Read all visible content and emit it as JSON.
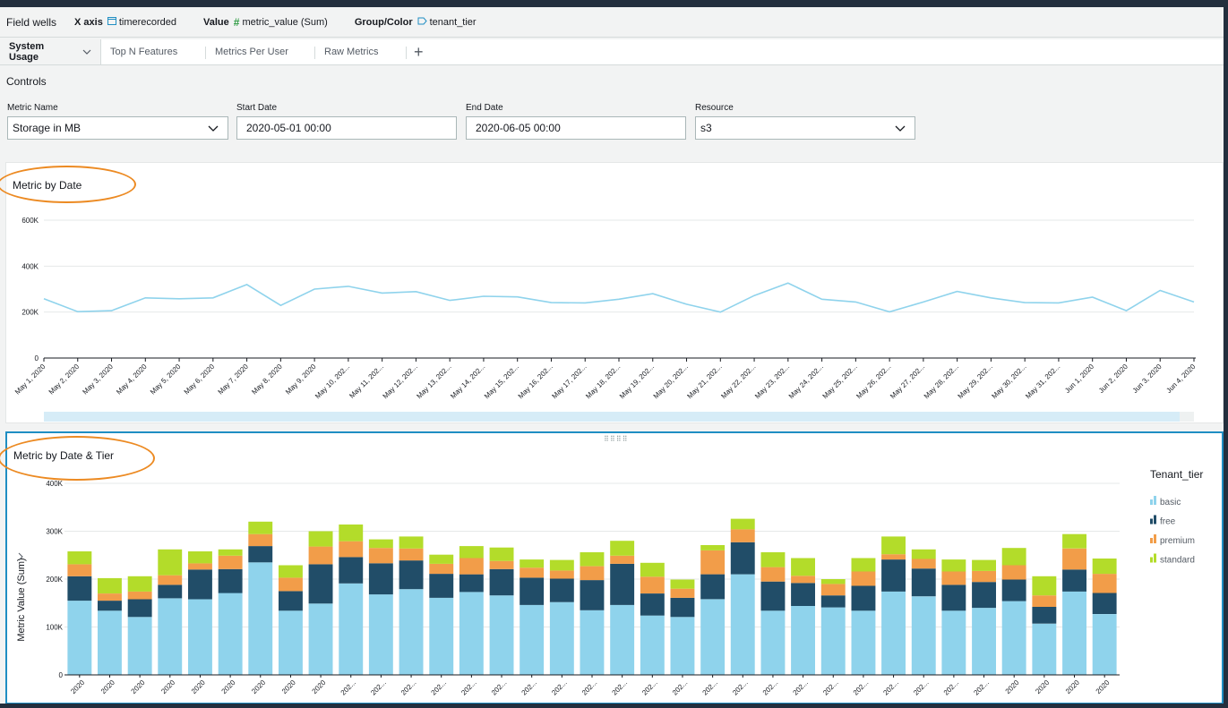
{
  "field_wells": {
    "title": "Field wells",
    "x_axis_label": "X axis",
    "x_axis_value": "timerecorded",
    "value_label": "Value",
    "value_value": "metric_value (Sum)",
    "group_label": "Group/Color",
    "group_value": "tenant_tier"
  },
  "tabs": [
    {
      "label": "System Usage",
      "active": true
    },
    {
      "label": "Top N Features"
    },
    {
      "label": "Metrics Per User"
    },
    {
      "label": "Raw Metrics"
    }
  ],
  "add_tab_symbol": "+",
  "controls": {
    "title": "Controls",
    "metric_name": {
      "label": "Metric Name",
      "value": "Storage in MB"
    },
    "start_date": {
      "label": "Start Date",
      "value": "2020-05-01 00:00"
    },
    "end_date": {
      "label": "End Date",
      "value": "2020-06-05 00:00"
    },
    "resource": {
      "label": "Resource",
      "value": "s3"
    }
  },
  "visual1": {
    "title": "Metric by Date"
  },
  "visual2": {
    "title": "Metric by Date & Tier"
  },
  "colors": {
    "line": "#8fd3ec",
    "basic": "#8fd3ec",
    "free": "#214d68",
    "premium": "#f29d49",
    "standard": "#b3dc2a",
    "highlight": "#ec8a22",
    "selected_border": "#1f8ec3"
  },
  "icons": {
    "x_axis": "calendar-icon",
    "value": "hash-icon",
    "group": "tag-icon"
  },
  "chart_data": [
    {
      "type": "line",
      "title": "Metric by Date",
      "ylim": [
        0,
        600000
      ],
      "yticks": [
        "0",
        "200K",
        "400K",
        "600K"
      ],
      "categories": [
        "May 1, 2020",
        "May 2, 2020",
        "May 3, 2020",
        "May 4, 2020",
        "May 5, 2020",
        "May 6, 2020",
        "May 7, 2020",
        "May 8, 2020",
        "May 9, 2020",
        "May 10, 202...",
        "May 11, 202...",
        "May 12, 202...",
        "May 13, 202...",
        "May 14, 202...",
        "May 15, 202...",
        "May 16, 202...",
        "May 17, 202...",
        "May 18, 202...",
        "May 19, 202...",
        "May 20, 202...",
        "May 21, 202...",
        "May 22, 202...",
        "May 23, 202...",
        "May 24, 202...",
        "May 25, 202...",
        "May 26, 202...",
        "May 27, 202...",
        "May 28, 202...",
        "May 29, 202...",
        "May 30, 202...",
        "May 31, 202...",
        "Jun 1, 2020",
        "Jun 2, 2020",
        "Jun 3, 2020",
        "Jun 4, 2020"
      ],
      "values": [
        258000,
        202000,
        206000,
        262000,
        258000,
        262000,
        320000,
        229000,
        300000,
        312000,
        283000,
        289000,
        251000,
        269000,
        266000,
        241000,
        240000,
        256000,
        280000,
        234000,
        200000,
        272000,
        326000,
        256000,
        244000,
        201000,
        244000,
        290000,
        262000,
        241000,
        240000,
        265000,
        206000,
        294000,
        244000
      ],
      "grid": true
    },
    {
      "type": "bar",
      "stacked": true,
      "title": "Metric by Date & Tier",
      "ylabel": "Metric Value (Sum)",
      "ylim": [
        0,
        400000
      ],
      "yticks": [
        "0",
        "100K",
        "200K",
        "300K",
        "400K"
      ],
      "xtick_labels": [
        "2020",
        "2020",
        "2020",
        "2020",
        "2020",
        "2020",
        "2020",
        "2020",
        "2020",
        "202...",
        "202...",
        "202...",
        "202...",
        "202...",
        "202...",
        "202...",
        "202...",
        "202...",
        "202...",
        "202...",
        "202...",
        "202...",
        "202...",
        "202...",
        "202...",
        "202...",
        "202...",
        "202...",
        "202...",
        "202...",
        "202...",
        "2020",
        "2020",
        "2020",
        "2020"
      ],
      "legend_title": "Tenant_tier",
      "legend_position": "right",
      "series": [
        {
          "name": "basic",
          "values": [
            155000,
            134000,
            121000,
            160000,
            158000,
            171000,
            235000,
            134000,
            149000,
            191000,
            168000,
            179000,
            161000,
            173000,
            166000,
            146000,
            152000,
            135000,
            146000,
            124000,
            121000,
            158000,
            210000,
            134000,
            144000,
            141000,
            134000,
            174000,
            164000,
            134000,
            140000,
            154000,
            107000,
            174000,
            127000
          ]
        },
        {
          "name": "free",
          "values": [
            51000,
            21000,
            37000,
            28000,
            62000,
            50000,
            34000,
            41000,
            82000,
            55000,
            65000,
            60000,
            50000,
            37000,
            55000,
            57000,
            49000,
            63000,
            86000,
            46000,
            40000,
            52000,
            67000,
            61000,
            48000,
            25000,
            52000,
            67000,
            58000,
            54000,
            54000,
            45000,
            35000,
            46000,
            44000
          ]
        },
        {
          "name": "premium",
          "values": [
            25000,
            15000,
            16000,
            20000,
            13000,
            28000,
            25000,
            28000,
            37000,
            33000,
            32000,
            25000,
            21000,
            34000,
            17000,
            21000,
            17000,
            29000,
            17000,
            35000,
            19000,
            50000,
            27000,
            30000,
            15000,
            24000,
            30000,
            11000,
            20000,
            28000,
            23000,
            30000,
            24000,
            44000,
            40000
          ]
        },
        {
          "name": "standard",
          "values": [
            27000,
            32000,
            32000,
            54000,
            25000,
            13000,
            26000,
            26000,
            32000,
            35000,
            18000,
            25000,
            19000,
            25000,
            28000,
            17000,
            22000,
            29000,
            31000,
            29000,
            19000,
            11000,
            22000,
            31000,
            37000,
            10000,
            28000,
            37000,
            20000,
            25000,
            23000,
            36000,
            40000,
            30000,
            32000
          ]
        }
      ]
    }
  ]
}
